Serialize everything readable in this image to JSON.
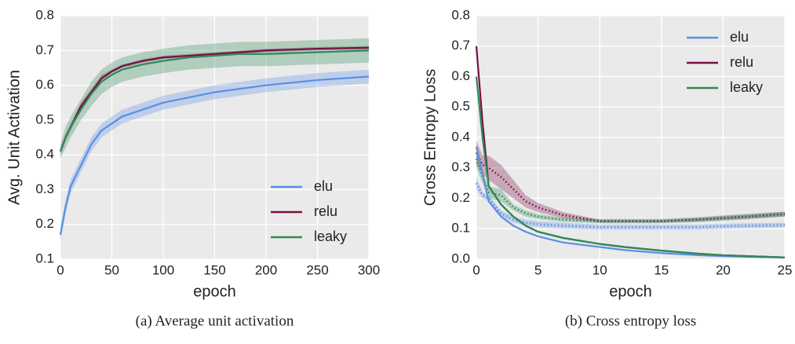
{
  "chart_data": [
    {
      "type": "line",
      "caption": "(a) Average unit activation",
      "xlabel": "epoch",
      "ylabel": "Avg. Unit Activation",
      "x": [
        0,
        5,
        10,
        20,
        30,
        40,
        50,
        60,
        80,
        100,
        125,
        150,
        175,
        200,
        250,
        300
      ],
      "xlim": [
        0,
        300
      ],
      "xticks": [
        0,
        50,
        100,
        150,
        200,
        250,
        300
      ],
      "ylim": [
        0.1,
        0.8
      ],
      "yticks": [
        0.1,
        0.2,
        0.3,
        0.4,
        0.5,
        0.6,
        0.7,
        0.8
      ],
      "grid": true,
      "legend": "lower right",
      "series": [
        {
          "name": "elu",
          "color": "#5b8ee6",
          "values": [
            0.17,
            0.25,
            0.31,
            0.37,
            0.43,
            0.47,
            0.49,
            0.51,
            0.53,
            0.55,
            0.565,
            0.58,
            0.59,
            0.6,
            0.615,
            0.625
          ],
          "lower": [
            0.15,
            0.23,
            0.29,
            0.35,
            0.41,
            0.45,
            0.47,
            0.49,
            0.51,
            0.53,
            0.545,
            0.56,
            0.57,
            0.58,
            0.595,
            0.605
          ],
          "upper": [
            0.19,
            0.27,
            0.33,
            0.39,
            0.45,
            0.49,
            0.51,
            0.53,
            0.55,
            0.57,
            0.585,
            0.6,
            0.61,
            0.62,
            0.635,
            0.645
          ]
        },
        {
          "name": "relu",
          "color": "#7b0f45",
          "values": [
            0.41,
            0.45,
            0.48,
            0.54,
            0.58,
            0.62,
            0.64,
            0.655,
            0.67,
            0.68,
            0.685,
            0.69,
            0.695,
            0.7,
            0.705,
            0.708
          ],
          "lower": [
            0.4,
            0.44,
            0.47,
            0.53,
            0.57,
            0.61,
            0.635,
            0.65,
            0.665,
            0.675,
            0.68,
            0.685,
            0.69,
            0.695,
            0.7,
            0.703
          ],
          "upper": [
            0.42,
            0.46,
            0.49,
            0.55,
            0.59,
            0.63,
            0.645,
            0.66,
            0.675,
            0.685,
            0.69,
            0.695,
            0.7,
            0.705,
            0.71,
            0.713
          ]
        },
        {
          "name": "leaky",
          "color": "#2e8b57",
          "values": [
            0.41,
            0.45,
            0.48,
            0.53,
            0.575,
            0.61,
            0.63,
            0.645,
            0.66,
            0.67,
            0.68,
            0.685,
            0.69,
            0.69,
            0.695,
            0.7
          ],
          "lower": [
            0.39,
            0.42,
            0.45,
            0.5,
            0.54,
            0.575,
            0.595,
            0.61,
            0.625,
            0.635,
            0.645,
            0.65,
            0.655,
            0.655,
            0.66,
            0.665
          ],
          "upper": [
            0.43,
            0.48,
            0.51,
            0.56,
            0.61,
            0.645,
            0.665,
            0.68,
            0.695,
            0.705,
            0.715,
            0.72,
            0.725,
            0.725,
            0.73,
            0.735
          ]
        }
      ]
    },
    {
      "type": "line",
      "caption": "(b) Cross entropy loss",
      "xlabel": "epoch",
      "ylabel": "Cross Entropy Loss",
      "x": [
        0,
        0.5,
        1,
        2,
        3,
        4,
        5,
        7,
        10,
        12,
        15,
        18,
        20,
        22,
        25
      ],
      "xlim": [
        0,
        25
      ],
      "xticks": [
        0,
        5,
        10,
        15,
        20,
        25
      ],
      "ylim": [
        0,
        0.8
      ],
      "yticks": [
        {
          "value": 0,
          "label": "0.0"
        },
        0.1,
        0.2,
        0.3,
        0.4,
        0.5,
        0.6,
        0.7,
        0.8
      ],
      "grid": true,
      "legend": "upper right",
      "series": [
        {
          "color": "#5b8ee6",
          "dotted": true,
          "values": [
            0.25,
            0.21,
            0.2,
            0.15,
            0.13,
            0.12,
            0.115,
            0.11,
            0.105,
            0.105,
            0.105,
            0.105,
            0.108,
            0.11,
            0.112
          ],
          "lower": [
            0.23,
            0.2,
            0.19,
            0.14,
            0.12,
            0.11,
            0.105,
            0.1,
            0.097,
            0.097,
            0.097,
            0.097,
            0.1,
            0.102,
            0.104
          ],
          "upper": [
            0.27,
            0.22,
            0.21,
            0.16,
            0.14,
            0.13,
            0.125,
            0.12,
            0.113,
            0.113,
            0.113,
            0.113,
            0.116,
            0.118,
            0.12
          ]
        },
        {
          "color": "#7b0f45",
          "dotted": true,
          "values": [
            0.35,
            0.31,
            0.3,
            0.27,
            0.23,
            0.19,
            0.17,
            0.145,
            0.125,
            0.125,
            0.125,
            0.13,
            0.135,
            0.14,
            0.148
          ],
          "lower": [
            0.31,
            0.28,
            0.26,
            0.23,
            0.2,
            0.17,
            0.155,
            0.135,
            0.12,
            0.12,
            0.12,
            0.124,
            0.128,
            0.133,
            0.14
          ],
          "upper": [
            0.39,
            0.34,
            0.34,
            0.31,
            0.26,
            0.21,
            0.185,
            0.155,
            0.13,
            0.13,
            0.13,
            0.136,
            0.142,
            0.147,
            0.156
          ]
        },
        {
          "color": "#2e8b57",
          "dotted": true,
          "values": [
            0.33,
            0.27,
            0.22,
            0.21,
            0.17,
            0.15,
            0.14,
            0.13,
            0.125,
            0.125,
            0.125,
            0.13,
            0.135,
            0.14,
            0.148
          ],
          "lower": [
            0.3,
            0.25,
            0.2,
            0.19,
            0.16,
            0.14,
            0.132,
            0.123,
            0.118,
            0.118,
            0.118,
            0.122,
            0.126,
            0.131,
            0.14
          ],
          "upper": [
            0.36,
            0.29,
            0.24,
            0.23,
            0.18,
            0.16,
            0.148,
            0.137,
            0.132,
            0.132,
            0.132,
            0.138,
            0.144,
            0.149,
            0.156
          ]
        },
        {
          "name": "elu",
          "color": "#5b8ee6",
          "values": [
            0.37,
            0.28,
            0.19,
            0.14,
            0.11,
            0.09,
            0.075,
            0.055,
            0.04,
            0.03,
            0.02,
            0.013,
            0.01,
            0.008,
            0.005
          ]
        },
        {
          "name": "relu",
          "color": "#7b0f45",
          "values": [
            0.7,
            0.45,
            0.24,
            0.18,
            0.14,
            0.11,
            0.09,
            0.07,
            0.05,
            0.04,
            0.028,
            0.018,
            0.013,
            0.01,
            0.006
          ]
        },
        {
          "name": "leaky",
          "color": "#2e8b57",
          "values": [
            0.6,
            0.4,
            0.24,
            0.18,
            0.14,
            0.11,
            0.09,
            0.07,
            0.05,
            0.04,
            0.028,
            0.018,
            0.013,
            0.01,
            0.006
          ]
        }
      ]
    }
  ]
}
